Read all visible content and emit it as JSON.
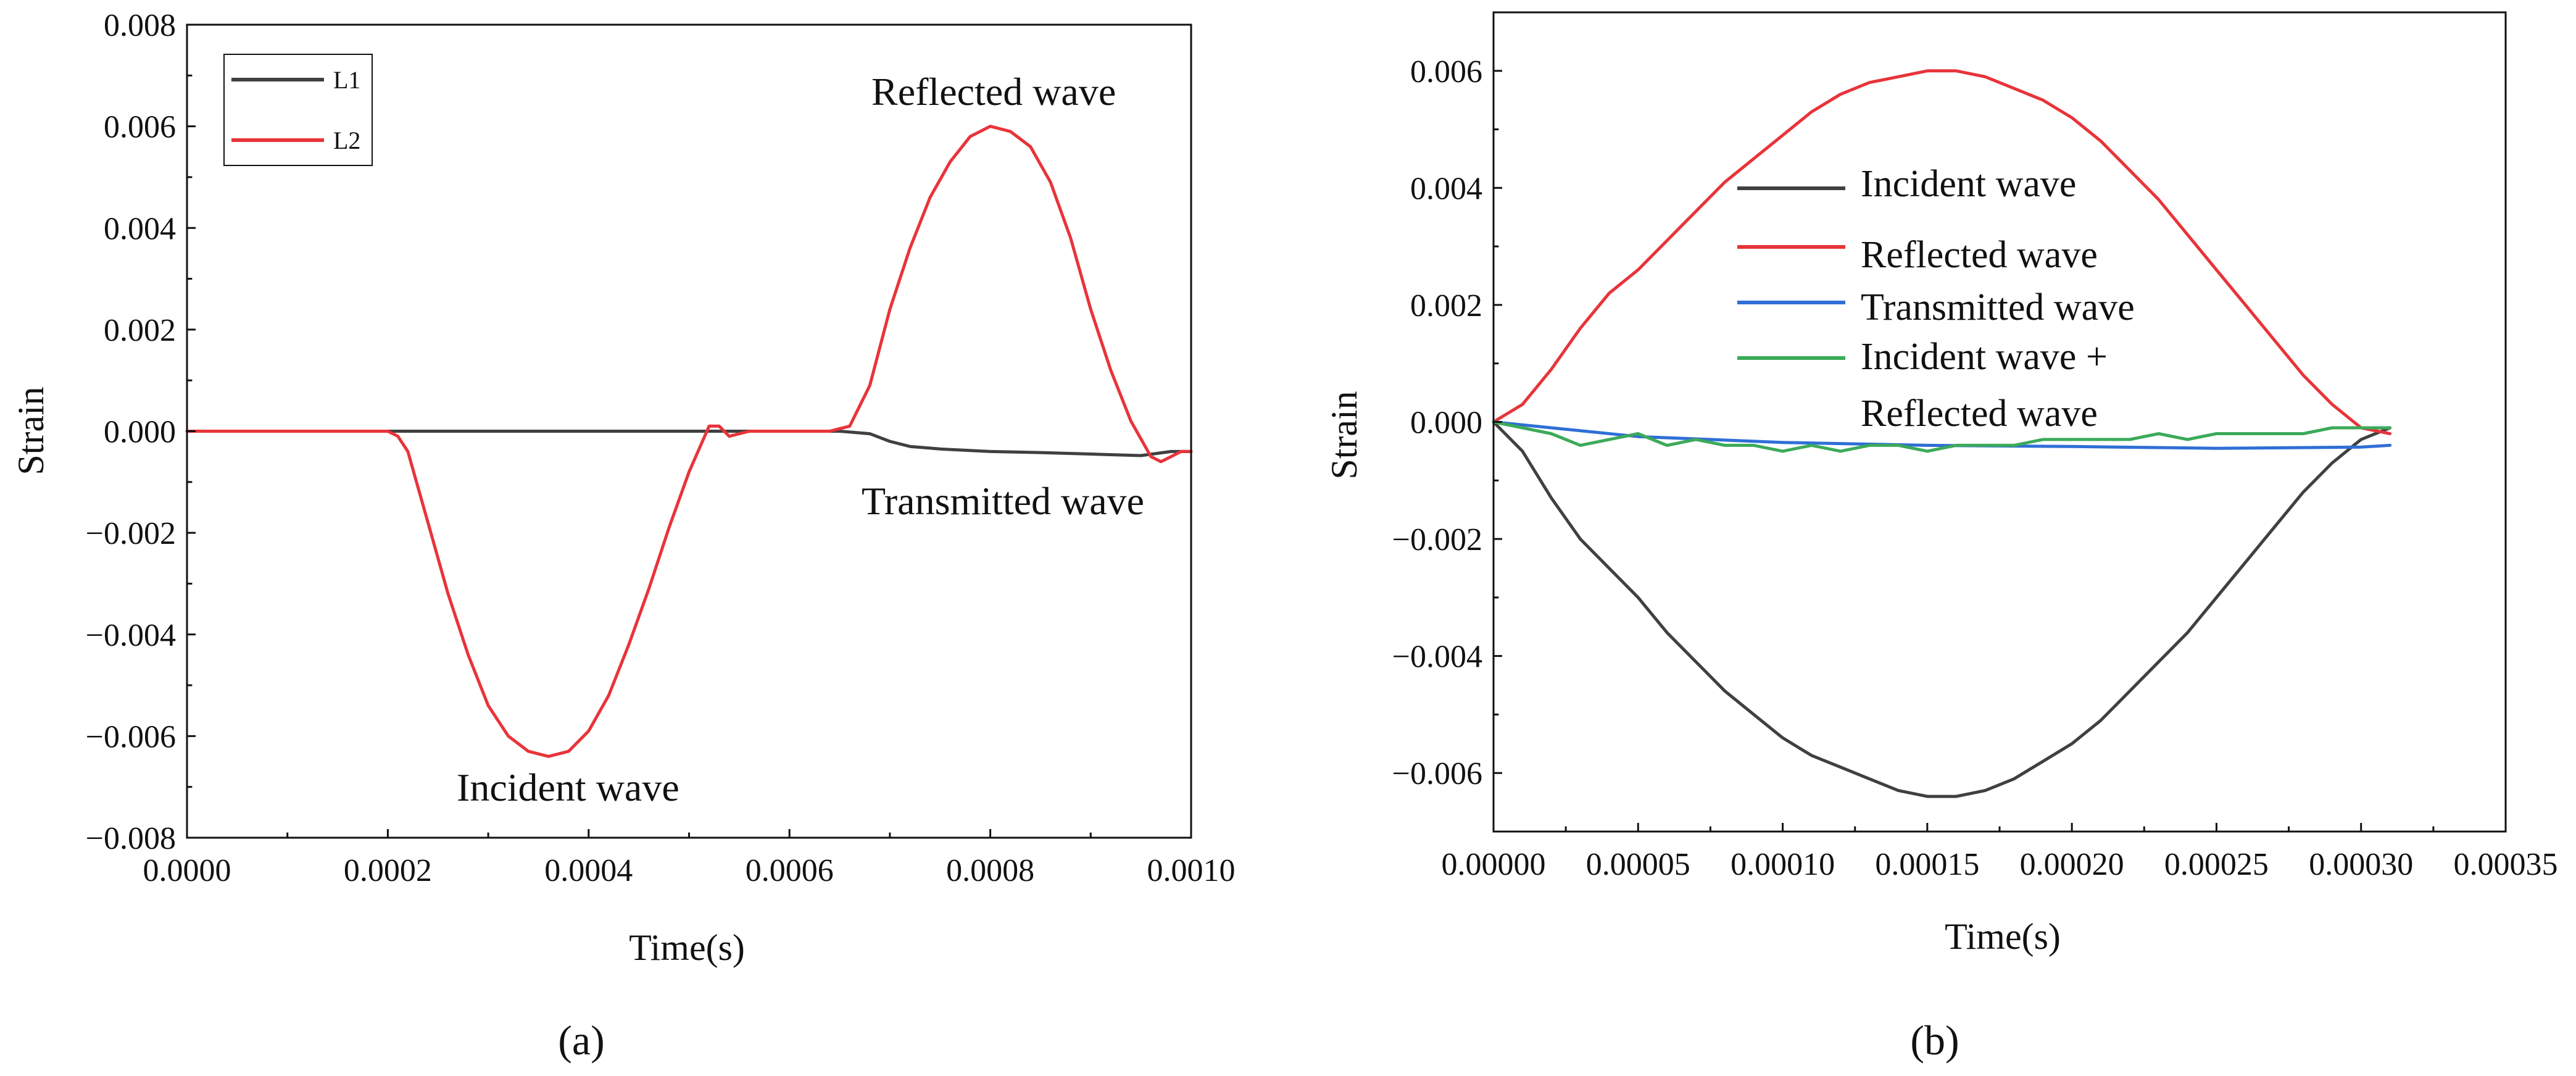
{
  "chart_data": [
    {
      "id": "a",
      "type": "line",
      "panel_label": "(a)",
      "xlabel": "Time(s)",
      "ylabel": "Strain",
      "xlim": [
        0,
        0.001
      ],
      "ylim": [
        -0.008,
        0.008
      ],
      "xticks": [
        0,
        0.0002,
        0.0004,
        0.0006,
        0.0008,
        0.001
      ],
      "xtick_labels": [
        "0.0000",
        "0.0002",
        "0.0004",
        "0.0006",
        "0.0008",
        "0.0010"
      ],
      "yticks": [
        -0.008,
        -0.006,
        -0.004,
        -0.002,
        0,
        0.002,
        0.004,
        0.006,
        0.008
      ],
      "ytick_labels": [
        "−0.008",
        "−0.006",
        "−0.004",
        "−0.002",
        "0.000",
        "0.002",
        "0.004",
        "0.006",
        "0.008"
      ],
      "legend_position": "top-left",
      "series": [
        {
          "name": "L1",
          "color": "#404040",
          "x": [
            0,
            0.00065,
            0.00068,
            0.0007,
            0.00072,
            0.00075,
            0.0008,
            0.00085,
            0.0009,
            0.00095,
            0.00098,
            0.001
          ],
          "y": [
            0,
            0,
            -5e-05,
            -0.0002,
            -0.0003,
            -0.00035,
            -0.0004,
            -0.00042,
            -0.00045,
            -0.00048,
            -0.0004,
            -0.0004
          ]
        },
        {
          "name": "L2",
          "color": "#e8343a",
          "x": [
            0,
            0.0002,
            0.00021,
            0.00022,
            0.00024,
            0.00026,
            0.00028,
            0.0003,
            0.00032,
            0.00034,
            0.00036,
            0.00038,
            0.0004,
            0.00042,
            0.00044,
            0.00046,
            0.00048,
            0.0005,
            0.00052,
            0.00053,
            0.00054,
            0.00056,
            0.0006,
            0.00064,
            0.00066,
            0.00068,
            0.0007,
            0.00072,
            0.00074,
            0.00076,
            0.00078,
            0.0008,
            0.00082,
            0.00084,
            0.00086,
            0.00088,
            0.0009,
            0.00092,
            0.00094,
            0.00096,
            0.00097,
            0.00098,
            0.00099,
            0.001
          ],
          "y": [
            0,
            0,
            -0.0001,
            -0.0004,
            -0.0018,
            -0.0032,
            -0.0044,
            -0.0054,
            -0.006,
            -0.0063,
            -0.0064,
            -0.0063,
            -0.0059,
            -0.0052,
            -0.0042,
            -0.0031,
            -0.0019,
            -0.0008,
            0.0001,
            0.0001,
            -0.0001,
            0,
            0,
            0,
            0.0001,
            0.0009,
            0.0024,
            0.0036,
            0.0046,
            0.0053,
            0.0058,
            0.006,
            0.0059,
            0.0056,
            0.0049,
            0.0038,
            0.0024,
            0.0012,
            0.0002,
            -0.0005,
            -0.0006,
            -0.0005,
            -0.0004,
            -0.0004
          ]
        }
      ],
      "annotations": [
        "Reflected wave",
        "Transmitted wave",
        "Incident wave"
      ]
    },
    {
      "id": "b",
      "type": "line",
      "panel_label": "(b)",
      "xlabel": "Time(s)",
      "ylabel": "Strain",
      "xlim": [
        0,
        0.00035
      ],
      "ylim": [
        -0.007,
        0.007
      ],
      "xticks": [
        0,
        5e-05,
        0.0001,
        0.00015,
        0.0002,
        0.00025,
        0.0003,
        0.00035
      ],
      "xtick_labels": [
        "0.00000",
        "0.00005",
        "0.00010",
        "0.00015",
        "0.00020",
        "0.00025",
        "0.00030",
        "0.00035"
      ],
      "yticks": [
        -0.006,
        -0.004,
        -0.002,
        0,
        0.002,
        0.004,
        0.006
      ],
      "ytick_labels": [
        "−0.006",
        "−0.004",
        "−0.002",
        "0.000",
        "0.002",
        "0.004",
        "0.006"
      ],
      "legend_position": "center",
      "series": [
        {
          "name": "Incident wave",
          "color": "#404040",
          "x": [
            0,
            1e-05,
            2e-05,
            3e-05,
            4e-05,
            5e-05,
            6e-05,
            7e-05,
            8e-05,
            9e-05,
            0.0001,
            0.00011,
            0.00012,
            0.00013,
            0.00014,
            0.00015,
            0.00016,
            0.00017,
            0.00018,
            0.00019,
            0.0002,
            0.00021,
            0.00022,
            0.00023,
            0.00024,
            0.00025,
            0.00026,
            0.00027,
            0.00028,
            0.00029,
            0.0003,
            0.00031
          ],
          "y": [
            0,
            -0.0005,
            -0.0013,
            -0.002,
            -0.0025,
            -0.003,
            -0.0036,
            -0.0041,
            -0.0046,
            -0.005,
            -0.0054,
            -0.0057,
            -0.0059,
            -0.0061,
            -0.0063,
            -0.0064,
            -0.0064,
            -0.0063,
            -0.0061,
            -0.0058,
            -0.0055,
            -0.0051,
            -0.0046,
            -0.0041,
            -0.0036,
            -0.003,
            -0.0024,
            -0.0018,
            -0.0012,
            -0.0007,
            -0.0003,
            -0.0001
          ]
        },
        {
          "name": "Reflected wave",
          "color": "#e8343a",
          "x": [
            0,
            1e-05,
            2e-05,
            3e-05,
            4e-05,
            5e-05,
            6e-05,
            7e-05,
            8e-05,
            9e-05,
            0.0001,
            0.00011,
            0.00012,
            0.00013,
            0.00014,
            0.00015,
            0.00016,
            0.00017,
            0.00018,
            0.00019,
            0.0002,
            0.00021,
            0.00022,
            0.00023,
            0.00024,
            0.00025,
            0.00026,
            0.00027,
            0.00028,
            0.00029,
            0.0003,
            0.00031
          ],
          "y": [
            0,
            0.0003,
            0.0009,
            0.0016,
            0.0022,
            0.0026,
            0.0031,
            0.0036,
            0.0041,
            0.0045,
            0.0049,
            0.0053,
            0.0056,
            0.0058,
            0.0059,
            0.006,
            0.006,
            0.0059,
            0.0057,
            0.0055,
            0.0052,
            0.0048,
            0.0043,
            0.0038,
            0.0032,
            0.0026,
            0.002,
            0.0014,
            0.0008,
            0.0003,
            -0.0001,
            -0.0002
          ]
        },
        {
          "name": "Transmitted wave",
          "color": "#2f6fd6",
          "x": [
            0,
            2e-05,
            5e-05,
            0.0001,
            0.00015,
            0.0002,
            0.00025,
            0.0003,
            0.00031
          ],
          "y": [
            0,
            -0.0001,
            -0.00025,
            -0.00035,
            -0.0004,
            -0.00042,
            -0.00045,
            -0.00043,
            -0.0004
          ]
        },
        {
          "name": "Incident wave + Reflected wave",
          "color": "#3caa5a",
          "x": [
            0,
            1e-05,
            2e-05,
            3e-05,
            4e-05,
            5e-05,
            6e-05,
            7e-05,
            8e-05,
            9e-05,
            0.0001,
            0.00011,
            0.00012,
            0.00013,
            0.00014,
            0.00015,
            0.00016,
            0.00017,
            0.00018,
            0.00019,
            0.0002,
            0.00021,
            0.00022,
            0.00023,
            0.00024,
            0.00025,
            0.00026,
            0.00027,
            0.00028,
            0.00029,
            0.0003,
            0.00031
          ],
          "y": [
            0,
            -0.0001,
            -0.0002,
            -0.0004,
            -0.0003,
            -0.0002,
            -0.0004,
            -0.0003,
            -0.0004,
            -0.0004,
            -0.0005,
            -0.0004,
            -0.0005,
            -0.0004,
            -0.0004,
            -0.0005,
            -0.0004,
            -0.0004,
            -0.0004,
            -0.0003,
            -0.0003,
            -0.0003,
            -0.0003,
            -0.0002,
            -0.0003,
            -0.0002,
            -0.0002,
            -0.0002,
            -0.0002,
            -0.0001,
            -0.0001,
            -0.0001
          ]
        }
      ],
      "legend_entries": [
        {
          "line1": "Incident wave",
          "line2": ""
        },
        {
          "line1": "Reflected wave",
          "line2": ""
        },
        {
          "line1": "Transmitted wave",
          "line2": ""
        },
        {
          "line1": "Incident wave +",
          "line2": "Reflected wave"
        }
      ]
    }
  ]
}
